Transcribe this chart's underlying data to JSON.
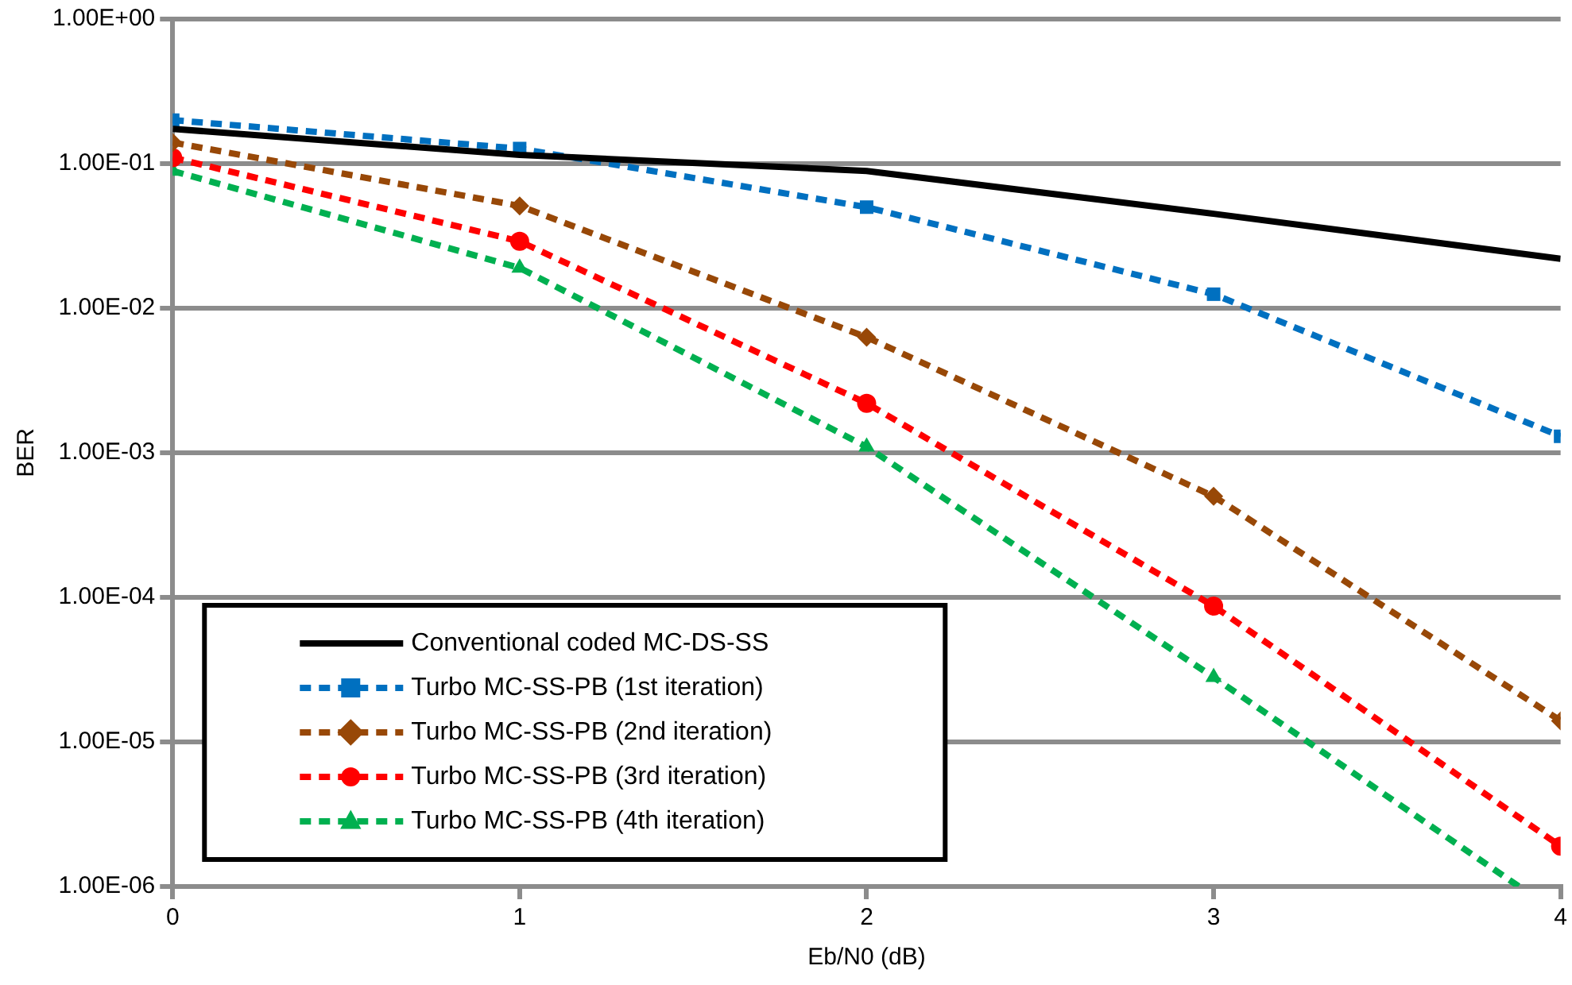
{
  "chart_data": {
    "type": "line",
    "xlabel": "Eb/N0 (dB)",
    "ylabel": "BER",
    "x": [
      0,
      1,
      2,
      3,
      4
    ],
    "xlim": [
      0,
      4
    ],
    "xticks": [
      0,
      1,
      2,
      3,
      4
    ],
    "ylim": [
      1e-06,
      1
    ],
    "log": "y",
    "grid": "y",
    "legend": "bottom left",
    "yticks": [
      {
        "value": 1e-06,
        "label": "1.00E-06"
      },
      {
        "value": 1e-05,
        "label": "1.00E-05"
      },
      {
        "value": 0.0001,
        "label": "1.00E-04"
      },
      {
        "value": 0.001,
        "label": "1.00E-03"
      },
      {
        "value": 0.01,
        "label": "1.00E-02"
      },
      {
        "value": 0.1,
        "label": "1.00E-01"
      },
      {
        "value": 1,
        "label": "1.00E+00"
      }
    ],
    "series": [
      {
        "name": "Conventional coded MC-DS-SS",
        "color": "#000000",
        "marker": "none",
        "line_style": "solid",
        "values": [
          0.174,
          0.115,
          0.089,
          0.045,
          0.022
        ]
      },
      {
        "name": "Turbo MC-SS-PB (1st iteration)",
        "color": "#0070c0",
        "marker": "square",
        "line_style": "dashed",
        "values": [
          0.2,
          0.127,
          0.05,
          0.0125,
          0.0013
        ]
      },
      {
        "name": "Turbo MC-SS-PB (2nd iteration)",
        "color": "#984807",
        "marker": "diamond",
        "line_style": "dashed",
        "values": [
          0.14,
          0.051,
          0.0063,
          0.0005,
          1.4e-05
        ]
      },
      {
        "name": "Turbo MC-SS-PB (3rd iteration)",
        "color": "#ff0000",
        "marker": "circle",
        "line_style": "dashed",
        "values": [
          0.11,
          0.029,
          0.0022,
          8.7e-05,
          1.9e-06
        ]
      },
      {
        "name": "Turbo MC-SS-PB (4th iteration)",
        "color": "#00b050",
        "marker": "triangle",
        "line_style": "dashed",
        "x": [
          0,
          1,
          2,
          3,
          3.88
        ],
        "values": [
          0.089,
          0.019,
          0.0011,
          2.8e-05,
          1e-06
        ]
      }
    ]
  }
}
